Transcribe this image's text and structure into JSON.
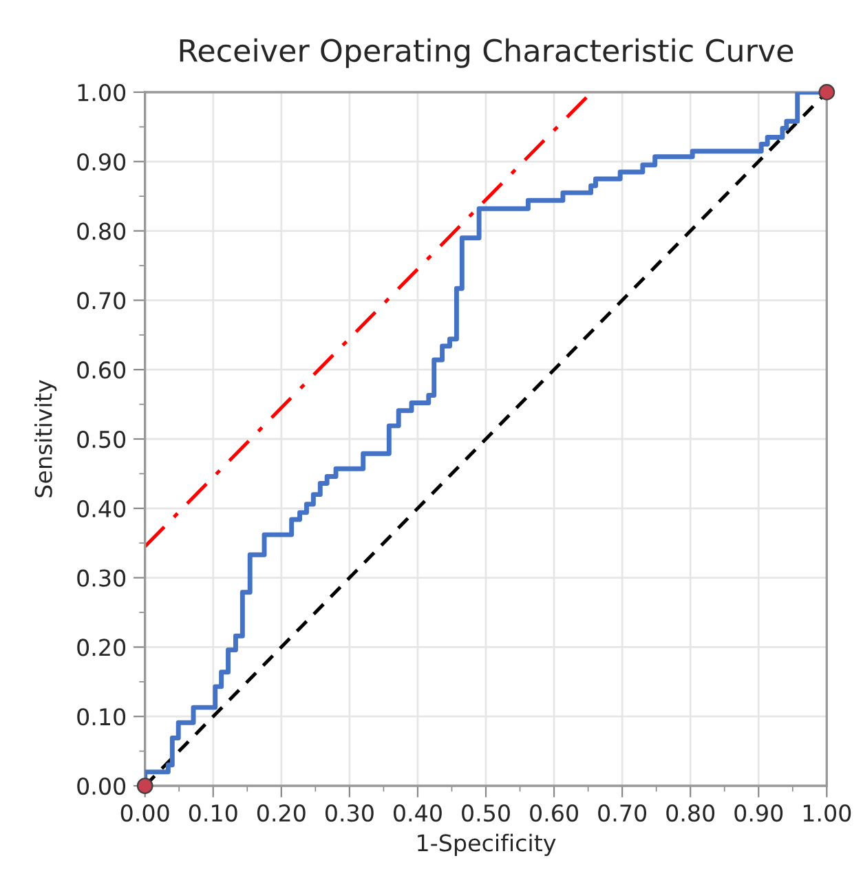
{
  "chart_data": {
    "type": "step",
    "title": "Receiver Operating Characteristic Curve",
    "xlabel": "1-Specificity",
    "ylabel": "Sensitivity",
    "xlim": [
      0,
      1
    ],
    "ylim": [
      0,
      1
    ],
    "xticks": [
      {
        "value": 0,
        "label": "0.00"
      },
      {
        "value": 0.05,
        "label": null
      },
      {
        "value": 0.1,
        "label": "0.10"
      },
      {
        "value": 0.15,
        "label": null
      },
      {
        "value": 0.2,
        "label": "0.20"
      },
      {
        "value": 0.25,
        "label": null
      },
      {
        "value": 0.3,
        "label": "0.30"
      },
      {
        "value": 0.35,
        "label": null
      },
      {
        "value": 0.4,
        "label": "0.40"
      },
      {
        "value": 0.45,
        "label": null
      },
      {
        "value": 0.5,
        "label": "0.50"
      },
      {
        "value": 0.55,
        "label": null
      },
      {
        "value": 0.6,
        "label": "0.60"
      },
      {
        "value": 0.65,
        "label": null
      },
      {
        "value": 0.7,
        "label": "0.70"
      },
      {
        "value": 0.75,
        "label": null
      },
      {
        "value": 0.8,
        "label": "0.80"
      },
      {
        "value": 0.85,
        "label": null
      },
      {
        "value": 0.9,
        "label": "0.90"
      },
      {
        "value": 0.95,
        "label": null
      },
      {
        "value": 1,
        "label": "1.00"
      }
    ],
    "yticks": [
      {
        "value": 0,
        "label": "0.00"
      },
      {
        "value": 0.05,
        "label": null
      },
      {
        "value": 0.1,
        "label": "0.10"
      },
      {
        "value": 0.15,
        "label": null
      },
      {
        "value": 0.2,
        "label": "0.20"
      },
      {
        "value": 0.25,
        "label": null
      },
      {
        "value": 0.3,
        "label": "0.30"
      },
      {
        "value": 0.35,
        "label": null
      },
      {
        "value": 0.4,
        "label": "0.40"
      },
      {
        "value": 0.45,
        "label": null
      },
      {
        "value": 0.5,
        "label": "0.50"
      },
      {
        "value": 0.55,
        "label": null
      },
      {
        "value": 0.6,
        "label": "0.60"
      },
      {
        "value": 0.65,
        "label": null
      },
      {
        "value": 0.7,
        "label": "0.70"
      },
      {
        "value": 0.75,
        "label": null
      },
      {
        "value": 0.8,
        "label": "0.80"
      },
      {
        "value": 0.85,
        "label": null
      },
      {
        "value": 0.9,
        "label": "0.90"
      },
      {
        "value": 0.95,
        "label": null
      },
      {
        "value": 1,
        "label": "1.00"
      }
    ],
    "grid": true,
    "series": [
      {
        "type": "line",
        "color": "#ff0000",
        "line_style": "dashdot",
        "x": [
          0,
          0.655
        ],
        "values": [
          0.345,
          1.0
        ]
      },
      {
        "type": "line",
        "color": "#000000",
        "line_style": "dashed",
        "x": [
          0,
          1
        ],
        "values": [
          0,
          1
        ]
      },
      {
        "color": "#4472c4",
        "line_style": "solid",
        "x": [
          0,
          0,
          0.034,
          0.04,
          0.049,
          0.071,
          0.103,
          0.112,
          0.122,
          0.133,
          0.143,
          0.154,
          0.175,
          0.215,
          0.227,
          0.237,
          0.247,
          0.257,
          0.267,
          0.28,
          0.32,
          0.358,
          0.372,
          0.391,
          0.416,
          0.424,
          0.436,
          0.447,
          0.457,
          0.465,
          0.49,
          0.562,
          0.613,
          0.654,
          0.661,
          0.697,
          0.73,
          0.748,
          0.803,
          0.904,
          0.913,
          0.935,
          0.941,
          0.957,
          1.0
        ],
        "values": [
          0,
          0.02,
          0.03,
          0.069,
          0.091,
          0.113,
          0.143,
          0.164,
          0.196,
          0.216,
          0.279,
          0.333,
          0.362,
          0.384,
          0.394,
          0.406,
          0.42,
          0.436,
          0.446,
          0.457,
          0.479,
          0.519,
          0.541,
          0.552,
          0.563,
          0.614,
          0.634,
          0.644,
          0.717,
          0.79,
          0.832,
          0.844,
          0.855,
          0.865,
          0.875,
          0.885,
          0.895,
          0.907,
          0.915,
          0.925,
          0.935,
          0.948,
          0.958,
          1.0,
          1.0
        ]
      },
      {
        "type": "scatter",
        "color": "#c8404f",
        "marker": "circle",
        "x": [
          0,
          1
        ],
        "values": [
          0,
          1
        ]
      }
    ]
  }
}
